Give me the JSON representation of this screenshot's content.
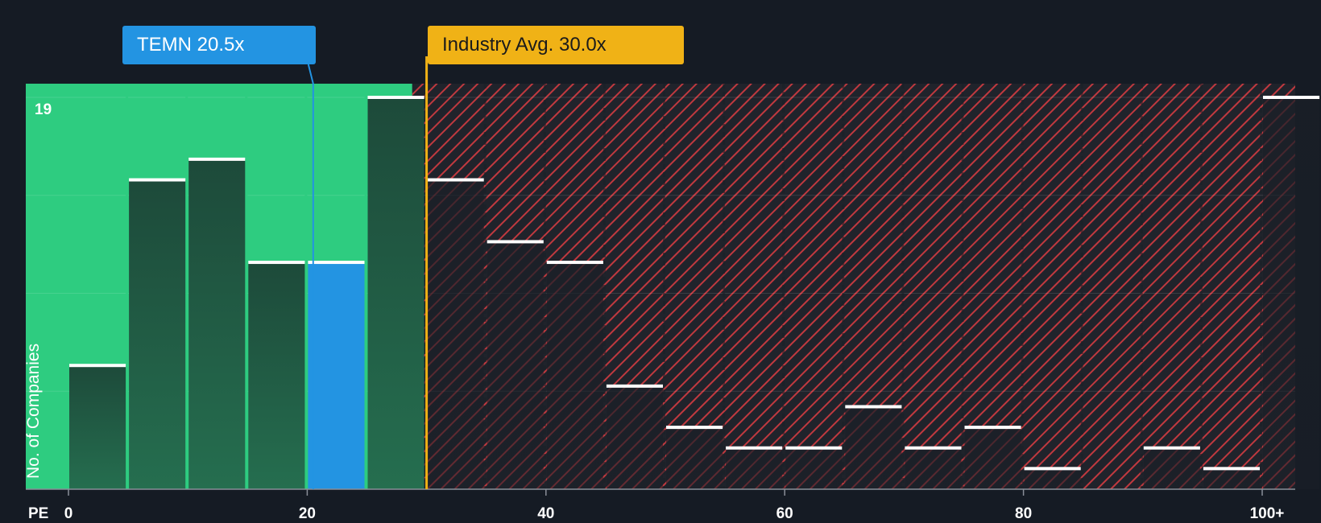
{
  "chart_data": {
    "type": "bar",
    "x_axis_title": "PE",
    "ylabel": "No. of Companies",
    "ymax_label": "19",
    "ylim": [
      0,
      19
    ],
    "bin_width": 5,
    "bins": [
      {
        "x": 0,
        "value": 6,
        "highlight": false
      },
      {
        "x": 5,
        "value": 15,
        "highlight": false
      },
      {
        "x": 10,
        "value": 16,
        "highlight": false
      },
      {
        "x": 15,
        "value": 11,
        "highlight": false
      },
      {
        "x": 20,
        "value": 11,
        "highlight": true
      },
      {
        "x": 25,
        "value": 19,
        "highlight": false
      },
      {
        "x": 30,
        "value": 15,
        "highlight": false
      },
      {
        "x": 35,
        "value": 12,
        "highlight": false
      },
      {
        "x": 40,
        "value": 11,
        "highlight": false
      },
      {
        "x": 45,
        "value": 5,
        "highlight": false
      },
      {
        "x": 50,
        "value": 3,
        "highlight": false
      },
      {
        "x": 55,
        "value": 2,
        "highlight": false
      },
      {
        "x": 60,
        "value": 2,
        "highlight": false
      },
      {
        "x": 65,
        "value": 4,
        "highlight": false
      },
      {
        "x": 70,
        "value": 2,
        "highlight": false
      },
      {
        "x": 75,
        "value": 3,
        "highlight": false
      },
      {
        "x": 80,
        "value": 1,
        "highlight": false
      },
      {
        "x": 85,
        "value": 0,
        "highlight": false
      },
      {
        "x": 90,
        "value": 2,
        "highlight": false
      },
      {
        "x": 95,
        "value": 1,
        "highlight": false
      },
      {
        "x": 100,
        "value": 19,
        "highlight": false
      }
    ],
    "x_ticks": [
      {
        "value": 0,
        "label": "0"
      },
      {
        "value": 20,
        "label": "20"
      },
      {
        "value": 40,
        "label": "40"
      },
      {
        "value": 60,
        "label": "60"
      },
      {
        "value": 80,
        "label": "80"
      },
      {
        "value": 100,
        "label": "100+"
      }
    ],
    "company": {
      "label": "TEMN 20.5x",
      "pe": 20.5
    },
    "industry": {
      "label": "Industry Avg. 30.0x",
      "pe": 30.0
    },
    "colors": {
      "background": "#151b24",
      "fair_zone": "#2ecc80",
      "bar": "#1d4a3a",
      "highlight_bar": "#2394e2",
      "hatch": "#c0393f",
      "company": "#2394e2",
      "industry": "#f0b216",
      "bar_top": "#ffffff"
    }
  }
}
